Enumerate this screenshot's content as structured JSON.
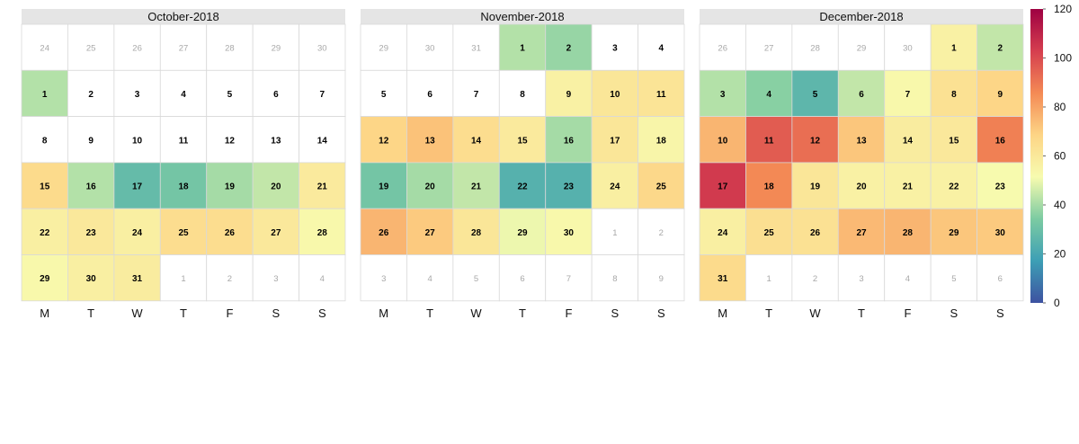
{
  "chart_data": {
    "type": "heatmap",
    "subtype": "calendar-heatmap",
    "weekday_labels": [
      "M",
      "T",
      "W",
      "T",
      "F",
      "S",
      "S"
    ],
    "colorscale": {
      "min": 0,
      "max": 120,
      "ticks": [
        0,
        20,
        40,
        60,
        80,
        100,
        120
      ],
      "stops": [
        "#3d52a1",
        "#3d9fb5",
        "#7ccba2",
        "#f7fbaf",
        "#fdd586",
        "#f48a55",
        "#d53e4f",
        "#9e0142"
      ]
    },
    "months": [
      {
        "title": "October-2018",
        "rows": [
          [
            {
              "d": 24,
              "out": true
            },
            {
              "d": 25,
              "out": true
            },
            {
              "d": 26,
              "out": true
            },
            {
              "d": 27,
              "out": true
            },
            {
              "d": 28,
              "out": true
            },
            {
              "d": 29,
              "out": true
            },
            {
              "d": 30,
              "out": true
            }
          ],
          [
            {
              "d": 1,
              "v": 42
            },
            {
              "d": 2
            },
            {
              "d": 3
            },
            {
              "d": 4
            },
            {
              "d": 5
            },
            {
              "d": 6
            },
            {
              "d": 7
            }
          ],
          [
            {
              "d": 8
            },
            {
              "d": 9
            },
            {
              "d": 10
            },
            {
              "d": 11
            },
            {
              "d": 12
            },
            {
              "d": 13
            },
            {
              "d": 14
            }
          ],
          [
            {
              "d": 15,
              "v": 66
            },
            {
              "d": 16,
              "v": 42
            },
            {
              "d": 17,
              "v": 28
            },
            {
              "d": 18,
              "v": 32
            },
            {
              "d": 19,
              "v": 40
            },
            {
              "d": 20,
              "v": 44
            },
            {
              "d": 21,
              "v": 59
            }
          ],
          [
            {
              "d": 22,
              "v": 57
            },
            {
              "d": 23,
              "v": 60
            },
            {
              "d": 24,
              "v": 57
            },
            {
              "d": 25,
              "v": 65
            },
            {
              "d": 26,
              "v": 65
            },
            {
              "d": 27,
              "v": 60
            },
            {
              "d": 28,
              "v": 53
            }
          ],
          [
            {
              "d": 29,
              "v": 53
            },
            {
              "d": 30,
              "v": 57
            },
            {
              "d": 31,
              "v": 58
            },
            {
              "d": 1,
              "out": true
            },
            {
              "d": 2,
              "out": true
            },
            {
              "d": 3,
              "out": true
            },
            {
              "d": 4,
              "out": true
            }
          ]
        ]
      },
      {
        "title": "November-2018",
        "rows": [
          [
            {
              "d": 29,
              "out": true
            },
            {
              "d": 30,
              "out": true
            },
            {
              "d": 31,
              "out": true
            },
            {
              "d": 1,
              "v": 42
            },
            {
              "d": 2,
              "v": 38
            },
            {
              "d": 3
            },
            {
              "d": 4
            }
          ],
          [
            {
              "d": 5
            },
            {
              "d": 6
            },
            {
              "d": 7
            },
            {
              "d": 8
            },
            {
              "d": 9,
              "v": 56
            },
            {
              "d": 10,
              "v": 61
            },
            {
              "d": 11,
              "v": 62
            }
          ],
          [
            {
              "d": 12,
              "v": 68
            },
            {
              "d": 13,
              "v": 73
            },
            {
              "d": 14,
              "v": 65
            },
            {
              "d": 15,
              "v": 59
            },
            {
              "d": 16,
              "v": 40
            },
            {
              "d": 17,
              "v": 61
            },
            {
              "d": 18,
              "v": 54
            }
          ],
          [
            {
              "d": 19,
              "v": 32
            },
            {
              "d": 20,
              "v": 40
            },
            {
              "d": 21,
              "v": 44
            },
            {
              "d": 22,
              "v": 24
            },
            {
              "d": 23,
              "v": 24
            },
            {
              "d": 24,
              "v": 57
            },
            {
              "d": 25,
              "v": 67
            }
          ],
          [
            {
              "d": 26,
              "v": 76
            },
            {
              "d": 27,
              "v": 71
            },
            {
              "d": 28,
              "v": 61
            },
            {
              "d": 29,
              "v": 50
            },
            {
              "d": 30,
              "v": 53
            },
            {
              "d": 1,
              "out": true
            },
            {
              "d": 2,
              "out": true
            }
          ],
          [
            {
              "d": 3,
              "out": true
            },
            {
              "d": 4,
              "out": true
            },
            {
              "d": 5,
              "out": true
            },
            {
              "d": 6,
              "out": true
            },
            {
              "d": 7,
              "out": true
            },
            {
              "d": 8,
              "out": true
            },
            {
              "d": 9,
              "out": true
            }
          ]
        ]
      },
      {
        "title": "December-2018",
        "rows": [
          [
            {
              "d": 26,
              "out": true
            },
            {
              "d": 27,
              "out": true
            },
            {
              "d": 28,
              "out": true
            },
            {
              "d": 29,
              "out": true
            },
            {
              "d": 30,
              "out": true
            },
            {
              "d": 1,
              "v": 56
            },
            {
              "d": 2,
              "v": 44
            }
          ],
          [
            {
              "d": 3,
              "v": 42
            },
            {
              "d": 4,
              "v": 36
            },
            {
              "d": 5,
              "v": 26
            },
            {
              "d": 6,
              "v": 44
            },
            {
              "d": 7,
              "v": 53
            },
            {
              "d": 8,
              "v": 63
            },
            {
              "d": 9,
              "v": 68
            }
          ],
          [
            {
              "d": 10,
              "v": 76
            },
            {
              "d": 11,
              "v": 96
            },
            {
              "d": 12,
              "v": 92
            },
            {
              "d": 13,
              "v": 72
            },
            {
              "d": 14,
              "v": 58
            },
            {
              "d": 15,
              "v": 60
            },
            {
              "d": 16,
              "v": 88
            }
          ],
          [
            {
              "d": 17,
              "v": 104
            },
            {
              "d": 18,
              "v": 86
            },
            {
              "d": 19,
              "v": 61
            },
            {
              "d": 20,
              "v": 56
            },
            {
              "d": 21,
              "v": 56
            },
            {
              "d": 22,
              "v": 56
            },
            {
              "d": 23,
              "v": 52
            }
          ],
          [
            {
              "d": 24,
              "v": 57
            },
            {
              "d": 25,
              "v": 64
            },
            {
              "d": 26,
              "v": 63
            },
            {
              "d": 27,
              "v": 75
            },
            {
              "d": 28,
              "v": 76
            },
            {
              "d": 29,
              "v": 72
            },
            {
              "d": 30,
              "v": 71
            }
          ],
          [
            {
              "d": 31,
              "v": 66
            },
            {
              "d": 1,
              "out": true
            },
            {
              "d": 2,
              "out": true
            },
            {
              "d": 3,
              "out": true
            },
            {
              "d": 4,
              "out": true
            },
            {
              "d": 5,
              "out": true
            },
            {
              "d": 6,
              "out": true
            }
          ]
        ]
      }
    ]
  }
}
